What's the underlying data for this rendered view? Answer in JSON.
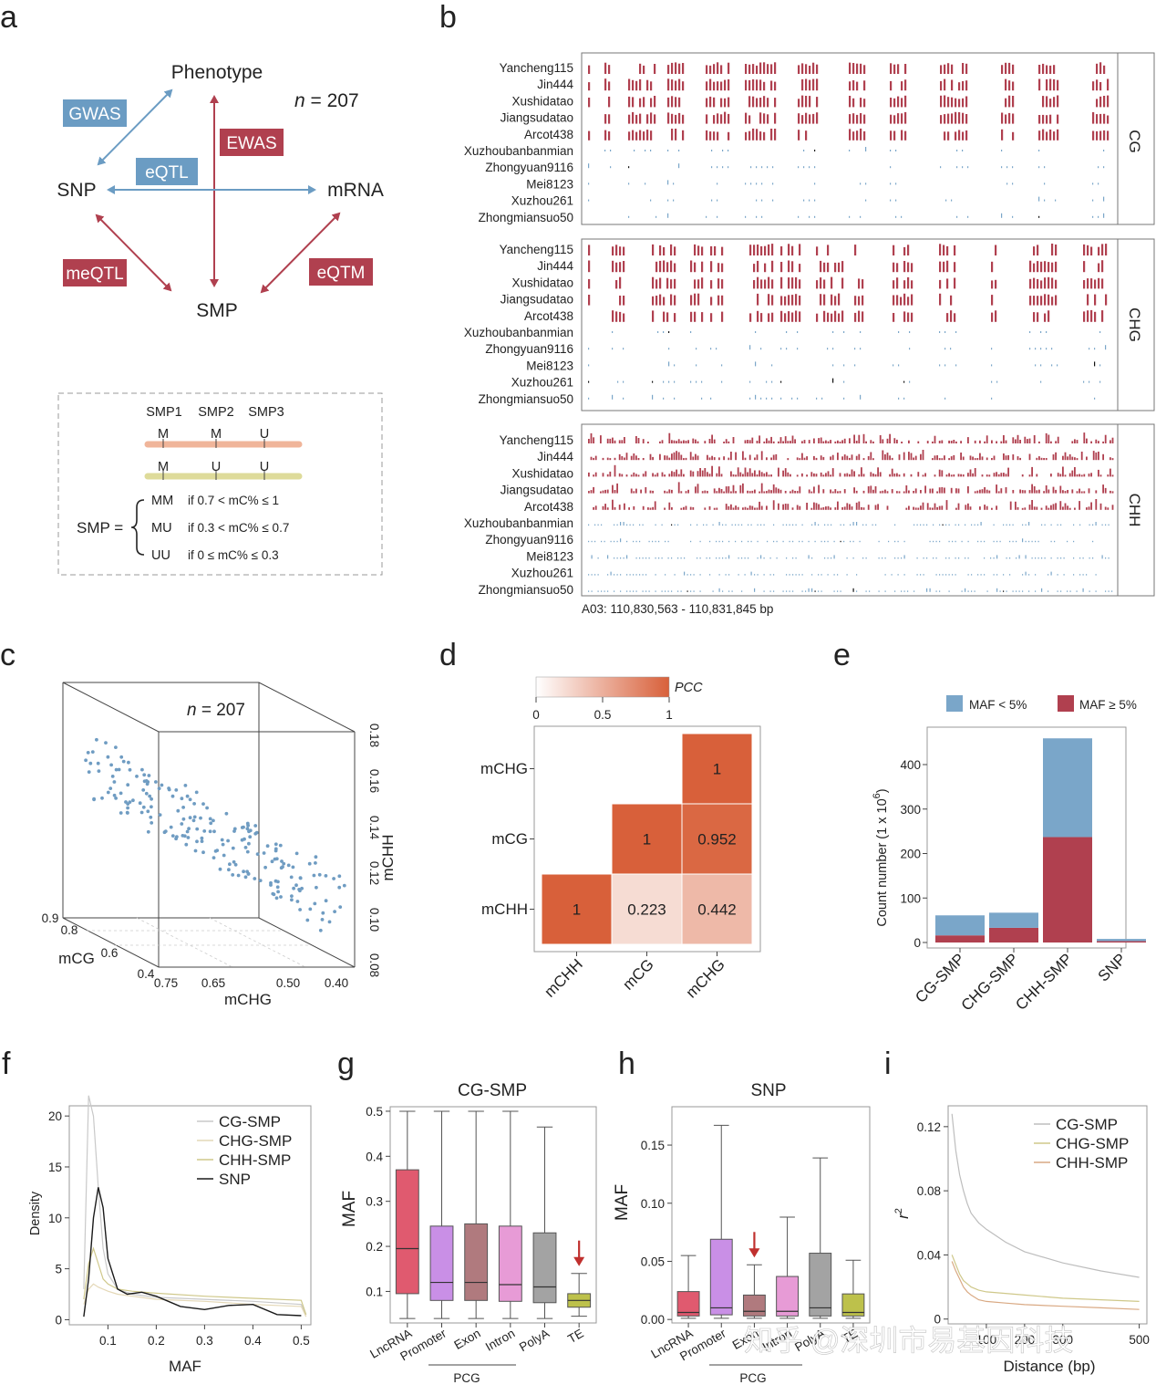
{
  "labels": {
    "a": "a",
    "b": "b",
    "c": "c",
    "d": "d",
    "e": "e",
    "f": "f",
    "g": "g",
    "h": "h",
    "i": "i"
  },
  "panel_a": {
    "nodes": {
      "phenotype": "Phenotype",
      "snp": "SNP",
      "mrna": "mRNA",
      "smp": "SMP"
    },
    "edges": {
      "gwas": "GWAS",
      "ewas": "EWAS",
      "eqtl": "eQTL",
      "meqtl": "meQTL",
      "eqtm": "eQTM"
    },
    "n_prefix": "n",
    "n_suffix": " = 207",
    "colors": {
      "blue": "#6b9cc3",
      "red": "#b0404f"
    },
    "inset": {
      "smp_headers": [
        "SMP1",
        "SMP2",
        "SMP3"
      ],
      "strand1": [
        "M",
        "M",
        "U"
      ],
      "strand2": [
        "M",
        "U",
        "U"
      ],
      "smp_eq": "SMP =",
      "rules": [
        {
          "code": "MM",
          "cond": "if 0.7 < mC% ≤ 1"
        },
        {
          "code": "MU",
          "cond": "if 0.3 < mC% ≤ 0.7"
        },
        {
          "code": "UU",
          "cond": "if  0   ≤ mC% ≤ 0.3"
        }
      ]
    }
  },
  "panel_b": {
    "samples": [
      "Yancheng115",
      "Jin444",
      "Xushidatao",
      "Jiangsudatao",
      "Arcot438",
      "Xuzhoubanbanmian",
      "Zhongyuan9116",
      "Mei8123",
      "Xuzhou261",
      "Zhongmiansuo50"
    ],
    "contexts": [
      "CG",
      "CHG",
      "CHH"
    ],
    "region": "A03: 110,830,563 - 110,831,845 bp"
  },
  "chart_data": [
    {
      "panel": "c",
      "type": "scatter",
      "title_prefix": "n",
      "title_suffix": " = 207",
      "xlabel": "mCHG",
      "ylabel": "mCHH",
      "zlabel": "mCG",
      "xticks": [
        "0.75",
        "0.65",
        "0.50",
        "0.40"
      ],
      "yticks": [
        "0.08",
        "0.10",
        "0.12",
        "0.14",
        "0.16",
        "0.18"
      ],
      "zticks": [
        "0.9",
        "0.8",
        "0.6",
        "0.4"
      ],
      "point_color": "#6f9cc2",
      "n_points": 207
    },
    {
      "panel": "d",
      "type": "heatmap",
      "legend_title": "PCC",
      "legend_ticks": [
        "0",
        "0.5",
        "1"
      ],
      "rows": [
        "mCHG",
        "mCG",
        "mCHH"
      ],
      "cols": [
        "mCHH",
        "mCG",
        "mCHG"
      ],
      "cells": [
        {
          "row": "mCHG",
          "col": "mCHG",
          "value": "1"
        },
        {
          "row": "mCG",
          "col": "mCG",
          "value": "1"
        },
        {
          "row": "mCG",
          "col": "mCHG",
          "value": "0.952"
        },
        {
          "row": "mCHH",
          "col": "mCHH",
          "value": "1"
        },
        {
          "row": "mCHH",
          "col": "mCG",
          "value": "0.223"
        },
        {
          "row": "mCHH",
          "col": "mCHG",
          "value": "0.442"
        }
      ],
      "colors": {
        "low": "#ffffff",
        "high": "#d8603a"
      }
    },
    {
      "panel": "e",
      "type": "bar",
      "categories": [
        "CG-SMP",
        "CHG-SMP",
        "CHH-SMP",
        "SNP"
      ],
      "series": [
        {
          "name": "MAF ≥ 5%",
          "color": "#b0404f",
          "values": [
            16,
            33,
            237,
            3
          ]
        },
        {
          "name": "MAF < 5%",
          "color": "#7aa6c9",
          "values": [
            45,
            34,
            222,
            5
          ]
        }
      ],
      "legend": [
        "MAF < 5%",
        "MAF  ≥ 5%"
      ],
      "ylabel": "Count number (1 x 10",
      "ylabel_sup": "6",
      "ylabel_end": ")",
      "yticks": [
        "0",
        "100",
        "200",
        "300",
        "400"
      ],
      "ylim": [
        0,
        460
      ]
    },
    {
      "panel": "f",
      "type": "line",
      "xlabel": "MAF",
      "ylabel": "Density",
      "xticks": [
        "0.1",
        "0.2",
        "0.3",
        "0.4",
        "0.5"
      ],
      "yticks": [
        "0",
        "5",
        "10",
        "15",
        "20"
      ],
      "xlim": [
        0.02,
        0.52
      ],
      "ylim": [
        -0.5,
        21
      ],
      "series": [
        {
          "name": "CG-SMP",
          "color": "#c9c9c9",
          "x": [
            0.05,
            0.06,
            0.07,
            0.08,
            0.09,
            0.1,
            0.12,
            0.15,
            0.2,
            0.3,
            0.4,
            0.5,
            0.51
          ],
          "y": [
            3,
            22,
            20,
            13,
            7,
            4.5,
            3,
            2.5,
            2.2,
            2,
            1.8,
            1.5,
            0.5
          ]
        },
        {
          "name": "CHG-SMP",
          "color": "#e4d8b7",
          "x": [
            0.05,
            0.06,
            0.07,
            0.08,
            0.09,
            0.1,
            0.12,
            0.15,
            0.2,
            0.3,
            0.4,
            0.5,
            0.51
          ],
          "y": [
            1.5,
            3,
            3.5,
            3.2,
            3,
            2.8,
            2.5,
            2.3,
            2,
            1.8,
            1.5,
            1.3,
            0.3
          ]
        },
        {
          "name": "CHH-SMP",
          "color": "#cfc88a",
          "x": [
            0.05,
            0.06,
            0.07,
            0.08,
            0.09,
            0.1,
            0.12,
            0.15,
            0.2,
            0.3,
            0.4,
            0.5,
            0.51
          ],
          "y": [
            2,
            5.5,
            7,
            5.5,
            4,
            3.5,
            3,
            2.8,
            2.6,
            2.3,
            2.1,
            1.9,
            0.5
          ]
        },
        {
          "name": "SNP",
          "color": "#1a1a1a",
          "x": [
            0.05,
            0.06,
            0.07,
            0.08,
            0.09,
            0.1,
            0.12,
            0.14,
            0.17,
            0.2,
            0.25,
            0.3,
            0.35,
            0.4,
            0.45,
            0.5
          ],
          "y": [
            0.3,
            4,
            10,
            13,
            11,
            6,
            3,
            2.5,
            2.7,
            2.3,
            1.3,
            1.0,
            1.4,
            1.5,
            0.5,
            0.4
          ]
        }
      ]
    },
    {
      "panel": "g",
      "type": "box",
      "title": "CG-SMP",
      "ylabel": "MAF",
      "yticks": [
        "0.1",
        "0.2",
        "0.3",
        "0.4",
        "0.5"
      ],
      "ylim": [
        0.03,
        0.51
      ],
      "categories": [
        "LncRNA",
        "Promoter",
        "Exon",
        "Intron",
        "PolyA",
        "TE"
      ],
      "group_label": "PCG",
      "boxes": [
        {
          "name": "LncRNA",
          "color": "#e05a6f",
          "min": 0.04,
          "q1": 0.095,
          "median": 0.195,
          "q3": 0.37,
          "max": 0.5
        },
        {
          "name": "Promoter",
          "color": "#c98fe6",
          "min": 0.04,
          "q1": 0.08,
          "median": 0.12,
          "q3": 0.245,
          "max": 0.5
        },
        {
          "name": "Exon",
          "color": "#b07a7e",
          "min": 0.04,
          "q1": 0.08,
          "median": 0.12,
          "q3": 0.25,
          "max": 0.5
        },
        {
          "name": "Intron",
          "color": "#e79bd6",
          "min": 0.04,
          "q1": 0.078,
          "median": 0.115,
          "q3": 0.245,
          "max": 0.5
        },
        {
          "name": "PolyA",
          "color": "#a3a3a3",
          "min": 0.04,
          "q1": 0.075,
          "median": 0.11,
          "q3": 0.23,
          "max": 0.465
        },
        {
          "name": "TE",
          "color": "#bdc14b",
          "min": 0.045,
          "q1": 0.065,
          "median": 0.08,
          "q3": 0.095,
          "max": 0.14
        }
      ],
      "arrow_at": "TE"
    },
    {
      "panel": "h",
      "type": "box",
      "title": "SNP",
      "ylabel": "MAF",
      "yticks": [
        "0.00",
        "0.05",
        "0.10",
        "0.15"
      ],
      "ylim": [
        -0.003,
        0.183
      ],
      "categories": [
        "LncRNA",
        "Promoter",
        "Exon",
        "Intron",
        "PolyA",
        "TE"
      ],
      "group_label": "PCG",
      "boxes": [
        {
          "name": "LncRNA",
          "color": "#e05a6f",
          "min": 0.001,
          "q1": 0.003,
          "median": 0.006,
          "q3": 0.024,
          "max": 0.055
        },
        {
          "name": "Promoter",
          "color": "#c98fe6",
          "min": 0.001,
          "q1": 0.004,
          "median": 0.01,
          "q3": 0.069,
          "max": 0.167
        },
        {
          "name": "Exon",
          "color": "#b07a7e",
          "min": 0.001,
          "q1": 0.003,
          "median": 0.007,
          "q3": 0.021,
          "max": 0.047
        },
        {
          "name": "Intron",
          "color": "#e79bd6",
          "min": 0.001,
          "q1": 0.003,
          "median": 0.007,
          "q3": 0.037,
          "max": 0.088
        },
        {
          "name": "PolyA",
          "color": "#a3a3a3",
          "min": 0.001,
          "q1": 0.003,
          "median": 0.01,
          "q3": 0.057,
          "max": 0.139
        },
        {
          "name": "TE",
          "color": "#bdc14b",
          "min": 0.001,
          "q1": 0.003,
          "median": 0.006,
          "q3": 0.022,
          "max": 0.051
        }
      ],
      "arrow_at": "Exon"
    },
    {
      "panel": "i",
      "type": "line",
      "xlabel": "Distance (bp)",
      "ylabel": "r",
      "ylabel_sup": "2",
      "yticks": [
        "0",
        "0.04",
        "0.08",
        "0.12"
      ],
      "xticks": [
        "100",
        "200",
        "300",
        "500"
      ],
      "xlim": [
        0,
        520
      ],
      "ylim": [
        -0.003,
        0.133
      ],
      "series": [
        {
          "name": "CG-SMP",
          "color": "#bdbdbd",
          "x": [
            10,
            20,
            30,
            40,
            50,
            60,
            80,
            100,
            150,
            200,
            300,
            400,
            500
          ],
          "y": [
            0.128,
            0.105,
            0.09,
            0.08,
            0.072,
            0.066,
            0.06,
            0.056,
            0.048,
            0.042,
            0.035,
            0.03,
            0.026
          ]
        },
        {
          "name": "CHG-SMP",
          "color": "#cfc88a",
          "x": [
            10,
            20,
            30,
            40,
            50,
            60,
            80,
            100,
            150,
            200,
            300,
            400,
            500
          ],
          "y": [
            0.04,
            0.034,
            0.028,
            0.024,
            0.022,
            0.02,
            0.018,
            0.017,
            0.016,
            0.015,
            0.013,
            0.012,
            0.011
          ]
        },
        {
          "name": "CHH-SMP",
          "color": "#d9a983",
          "x": [
            10,
            20,
            30,
            40,
            50,
            60,
            80,
            100,
            150,
            200,
            300,
            400,
            500
          ],
          "y": [
            0.036,
            0.03,
            0.025,
            0.02,
            0.017,
            0.015,
            0.012,
            0.011,
            0.01,
            0.009,
            0.008,
            0.007,
            0.006
          ]
        }
      ]
    }
  ],
  "watermark": "知乎 @深圳市易基因科技"
}
